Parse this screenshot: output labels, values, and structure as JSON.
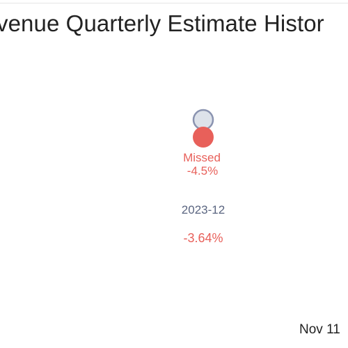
{
  "chart_data": {
    "type": "scatter",
    "title": "venue Quarterly Estimate Histor",
    "categories": [
      "2023-12"
    ],
    "series": [
      {
        "key": "estimate",
        "color": "#dde2ea",
        "stroke": "#8a93b0",
        "values": [
          1.0
        ]
      },
      {
        "key": "actual",
        "color": "#e8605a",
        "values": [
          0.955
        ]
      }
    ],
    "annotations": [
      {
        "category": "2023-12",
        "status_text": "Missed",
        "surprise_label": "-4.5%",
        "surprise_value": -4.5,
        "surprise_color": "#e8605a"
      }
    ],
    "price_change": {
      "category": "2023-12",
      "label": "-3.64%",
      "value": -3.64,
      "color": "#e8605a"
    },
    "grid": false
  },
  "footer": {
    "date_label": "Nov 11"
  },
  "colors": {
    "text": "#222222",
    "axis_label": "#5a6580"
  }
}
